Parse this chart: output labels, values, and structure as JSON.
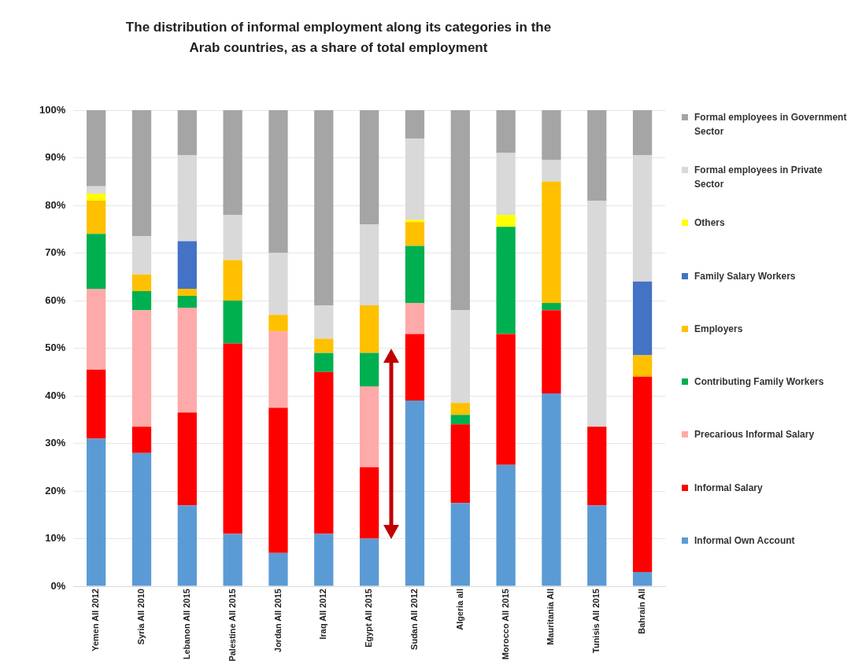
{
  "chart_data": {
    "type": "bar",
    "stacked": true,
    "title": "The distribution of informal employment along its categories in the Arab countries, as a share of total employment",
    "categories": [
      "Yemen All 2012",
      "Syria All 2010",
      "Lebanon All 2015",
      "Palestine All 2015",
      "Jordan All 2015",
      "Iraq All 2012",
      "Egypt All 2015",
      "Sudan All 2012",
      "Algeria all",
      "Morocco All 2015",
      "Mauritania All",
      "Tunisis All 2015",
      "Bahrain All"
    ],
    "series": [
      {
        "name": "Informal Own Account",
        "color": "#5b9bd5",
        "values": [
          31,
          28,
          17,
          11,
          7,
          11,
          10,
          39,
          17.5,
          25.5,
          40.5,
          17,
          3
        ]
      },
      {
        "name": "Informal Salary",
        "color": "#ff0000",
        "values": [
          14.5,
          5.5,
          19.5,
          40,
          30.5,
          34,
          15,
          14,
          16.5,
          27.5,
          17.5,
          16.5,
          41
        ]
      },
      {
        "name": "Precarious Informal Salary",
        "color": "#ffaaaa",
        "values": [
          17,
          24.5,
          22,
          0,
          16,
          0,
          17,
          6.5,
          0,
          0,
          0,
          0,
          0
        ]
      },
      {
        "name": "Contributing Family Workers",
        "color": "#00b050",
        "values": [
          11.5,
          4,
          2.5,
          9,
          0,
          4,
          7,
          12,
          2,
          22.5,
          1.5,
          0,
          0
        ]
      },
      {
        "name": "Employers",
        "color": "#ffc000",
        "values": [
          7,
          3.5,
          1.5,
          8.5,
          3.5,
          3,
          10,
          5,
          2.5,
          0,
          25.5,
          0,
          4.5
        ]
      },
      {
        "name": "Family Salary Workers",
        "color": "#4472c4",
        "values": [
          0,
          0,
          10,
          0,
          0,
          0,
          0,
          0,
          0,
          0,
          0,
          0,
          15.5
        ]
      },
      {
        "name": "Others",
        "color": "#ffff00",
        "values": [
          1.5,
          0,
          0,
          0,
          0,
          0,
          0,
          0.5,
          0,
          2.5,
          0,
          0,
          0
        ]
      },
      {
        "name": "Formal employees in Private Sector",
        "color": "#d9d9d9",
        "values": [
          1.5,
          8,
          18,
          9.5,
          13,
          7,
          17,
          17,
          19.5,
          13,
          4.5,
          47.5,
          26.5
        ]
      },
      {
        "name": "Formal employees in Government Sector",
        "color": "#a5a5a5",
        "values": [
          16,
          26.5,
          9.5,
          22,
          30,
          41,
          24,
          6,
          42,
          9,
          10.5,
          19,
          9.5
        ]
      }
    ],
    "ylim": [
      0,
      100
    ],
    "yticks": [
      {
        "value": 0,
        "label": "0%"
      },
      {
        "value": 10,
        "label": "10%"
      },
      {
        "value": 20,
        "label": "20%"
      },
      {
        "value": 30,
        "label": "30%"
      },
      {
        "value": 40,
        "label": "40%"
      },
      {
        "value": 50,
        "label": "50%"
      },
      {
        "value": 60,
        "label": "60%"
      },
      {
        "value": 70,
        "label": "70%"
      },
      {
        "value": 80,
        "label": "80%"
      },
      {
        "value": 90,
        "label": "90%"
      },
      {
        "value": 100,
        "label": "100%"
      }
    ],
    "grid": "y",
    "legend": "right"
  }
}
